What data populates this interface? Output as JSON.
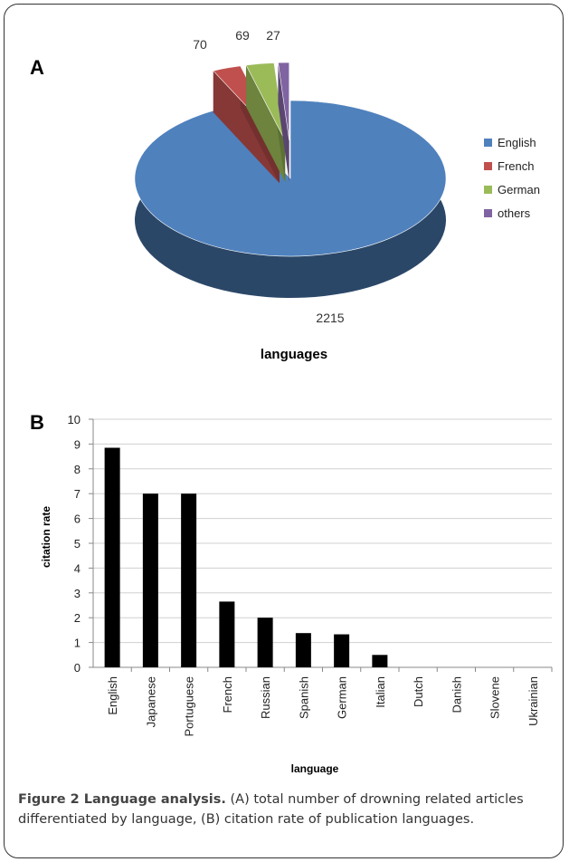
{
  "chart_data": [
    {
      "type": "pie",
      "panel_label": "A",
      "title": "languages",
      "categories": [
        "English",
        "French",
        "German",
        "others"
      ],
      "values": [
        2215,
        70,
        69,
        27
      ],
      "data_labels": [
        "2215",
        "70",
        "69",
        "27"
      ],
      "colors": [
        "#4F81BD",
        "#C0504D",
        "#9BBB59",
        "#8064A2"
      ],
      "legend_position": "right",
      "three_d": true
    },
    {
      "type": "bar",
      "panel_label": "B",
      "categories": [
        "English",
        "Japanese",
        "Portuguese",
        "French",
        "Russian",
        "Spanish",
        "German",
        "Italian",
        "Dutch",
        "Danish",
        "Slovene",
        "Ukrainian"
      ],
      "values": [
        8.85,
        7,
        7,
        2.65,
        2,
        1.38,
        1.33,
        0.5,
        0,
        0,
        0,
        0
      ],
      "xlabel": "language",
      "ylabel": "citation rate",
      "ylim": [
        0,
        10
      ],
      "yticks": [
        "0",
        "1",
        "2",
        "3",
        "4",
        "5",
        "6",
        "7",
        "8",
        "9",
        "10"
      ],
      "grid": true,
      "bar_color": "#000000"
    }
  ],
  "caption": {
    "title": "Figure 2 Language analysis.",
    "text": " (A) total number of drowning related articles differentiated by language, (B) citation rate of publication languages."
  }
}
